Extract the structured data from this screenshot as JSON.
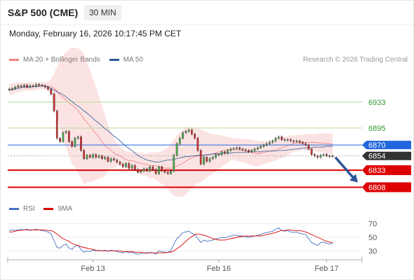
{
  "header": {
    "title": "S&P 500 (CME)",
    "interval": "30 MIN",
    "timestamp": "Monday, February 16, 2026 10:17:45 PM CET"
  },
  "legend": {
    "bollinger_label": "MA 20 + Bollinger Bands",
    "ma50_label": "MA 50",
    "copyright": "Research © 2026 Trading Central",
    "rsi_label": "RSI",
    "rsi_ma_label": "9MA"
  },
  "colors": {
    "bollinger": "#f08080",
    "ma50": "#2b5797",
    "resistance": "#339933",
    "pivot": "#2266dd",
    "support": "#dd0000",
    "last": "#333333",
    "rsi": "#4472c4",
    "rsi_ma": "#dd0000"
  },
  "chart_data": [
    {
      "type": "candlestick",
      "x_tick_labels": [
        "Feb 13",
        "Feb 16",
        "Feb 17"
      ],
      "ylim": [
        6790,
        6975
      ],
      "levels": [
        {
          "value": 6933,
          "label": "6933",
          "kind": "resistance"
        },
        {
          "value": 6895,
          "label": "6895",
          "kind": "resistance"
        },
        {
          "value": 6870,
          "label": "6870",
          "kind": "pivot"
        },
        {
          "value": 6854,
          "label": "6854",
          "kind": "last"
        },
        {
          "value": 6833,
          "label": "6833",
          "kind": "support"
        },
        {
          "value": 6808,
          "label": "6808",
          "kind": "support"
        }
      ],
      "close": [
        6952,
        6953,
        6955,
        6957,
        6956,
        6958,
        6955,
        6957,
        6956,
        6959,
        6958,
        6957,
        6955,
        6952,
        6945,
        6920,
        6880,
        6875,
        6888,
        6890,
        6875,
        6868,
        6880,
        6882,
        6862,
        6850,
        6855,
        6852,
        6856,
        6852,
        6854,
        6850,
        6852,
        6846,
        6850,
        6848,
        6845,
        6842,
        6838,
        6843,
        6836,
        6840,
        6834,
        6830,
        6832,
        6835,
        6832,
        6838,
        6834,
        6828,
        6838,
        6832,
        6830,
        6828,
        6832,
        6855,
        6872,
        6880,
        6888,
        6890,
        6892,
        6886,
        6880,
        6862,
        6842,
        6852,
        6846,
        6850,
        6852,
        6856,
        6856,
        6860,
        6858,
        6862,
        6864,
        6865,
        6866,
        6864,
        6863,
        6862,
        6860,
        6862,
        6864,
        6866,
        6868,
        6870,
        6872,
        6874,
        6876,
        6880,
        6882,
        6878,
        6877,
        6878,
        6876,
        6875,
        6876,
        6874,
        6872,
        6870,
        6864,
        6856,
        6854,
        6852,
        6855,
        6856,
        6854,
        6853,
        6854
      ],
      "sma20": [
        6952,
        6952,
        6954,
        6955,
        6955,
        6956,
        6956,
        6956,
        6956,
        6956,
        6957,
        6957,
        6957,
        6956,
        6956,
        6954,
        6949,
        6944,
        6940,
        6936,
        6932,
        6928,
        6925,
        6921,
        6915,
        6908,
        6903,
        6898,
        6892,
        6887,
        6881,
        6875,
        6869,
        6866,
        6862,
        6858,
        6856,
        6854,
        6851,
        6849,
        6847,
        6847,
        6846,
        6844,
        6843,
        6842,
        6841,
        6840,
        6840,
        6839,
        6838,
        6837,
        6836,
        6836,
        6836,
        6837,
        6839,
        6841,
        6843,
        6846,
        6849,
        6851,
        6853,
        6854,
        6854,
        6855,
        6856,
        6856,
        6857,
        6858,
        6860,
        6861,
        6862,
        6863,
        6864,
        6864,
        6863,
        6863,
        6862,
        6861,
        6860,
        6859,
        6858,
        6857,
        6858,
        6859,
        6860,
        6861,
        6862,
        6863,
        6865,
        6866,
        6867,
        6869,
        6871,
        6872,
        6873,
        6873,
        6874,
        6874,
        6874,
        6874,
        6874,
        6873,
        6873,
        6873,
        6872,
        6872,
        6871
      ],
      "upper_band": [
        6960,
        6960,
        6962,
        6962,
        6962,
        6962,
        6962,
        6962,
        6962,
        6962,
        6962,
        6962,
        6962,
        6963,
        6967,
        6975,
        6985,
        6994,
        7001,
        7006,
        7010,
        7013,
        7013,
        7012,
        7009,
        7004,
        6991,
        6980,
        6968,
        6955,
        6942,
        6928,
        6913,
        6900,
        6888,
        6880,
        6873,
        6868,
        6864,
        6861,
        6860,
        6860,
        6860,
        6859,
        6859,
        6858,
        6858,
        6859,
        6859,
        6859,
        6860,
        6861,
        6863,
        6866,
        6872,
        6878,
        6884,
        6888,
        6892,
        6895,
        6896,
        6896,
        6895,
        6894,
        6893,
        6891,
        6889,
        6887,
        6886,
        6885,
        6885,
        6884,
        6883,
        6882,
        6880,
        6880,
        6880,
        6880,
        6879,
        6879,
        6878,
        6878,
        6877,
        6876,
        6876,
        6876,
        6877,
        6877,
        6878,
        6879,
        6880,
        6881,
        6882,
        6883,
        6884,
        6884,
        6885,
        6885,
        6885,
        6886,
        6886,
        6886,
        6886,
        6887,
        6887,
        6887,
        6887,
        6887,
        6887
      ],
      "lower_band": [
        6944,
        6944,
        6946,
        6948,
        6948,
        6950,
        6950,
        6950,
        6950,
        6950,
        6952,
        6952,
        6952,
        6949,
        6945,
        6933,
        6913,
        6894,
        6879,
        6866,
        6854,
        6843,
        6837,
        6830,
        6821,
        6812,
        6815,
        6816,
        6816,
        6819,
        6820,
        6822,
        6825,
        6832,
        6836,
        6836,
        6839,
        6840,
        6838,
        6837,
        6834,
        6834,
        6832,
        6829,
        6827,
        6826,
        6824,
        6821,
        6821,
        6819,
        6816,
        6813,
        6809,
        6806,
        6800,
        6796,
        6794,
        6794,
        6794,
        6797,
        6802,
        6806,
        6811,
        6814,
        6815,
        6819,
        6823,
        6825,
        6828,
        6831,
        6835,
        6838,
        6841,
        6844,
        6848,
        6848,
        6846,
        6846,
        6845,
        6843,
        6842,
        6840,
        6839,
        6838,
        6840,
        6842,
        6843,
        6845,
        6846,
        6847,
        6850,
        6851,
        6852,
        6855,
        6858,
        6860,
        6861,
        6861,
        6863,
        6862,
        6862,
        6862,
        6862,
        6859,
        6859,
        6859,
        6857,
        6857,
        6855
      ],
      "ma50": [
        6950,
        6951,
        6952,
        6953,
        6954,
        6955,
        6955,
        6955,
        6956,
        6956,
        6956,
        6957,
        6957,
        6955,
        6953,
        6951,
        6948,
        6946,
        6944,
        6941,
        6937,
        6934,
        6930,
        6927,
        6924,
        6920,
        6917,
        6913,
        6909,
        6905,
        6902,
        6898,
        6894,
        6891,
        6887,
        6883,
        6880,
        6876,
        6872,
        6868,
        6865,
        6862,
        6858,
        6855,
        6852,
        6850,
        6848,
        6847,
        6846,
        6845,
        6845,
        6846,
        6847,
        6848,
        6848,
        6849,
        6850,
        6851,
        6852,
        6853,
        6853,
        6854,
        6854,
        6855,
        6855,
        6855,
        6856,
        6856,
        6857,
        6857,
        6857,
        6858,
        6858,
        6858,
        6858,
        6859,
        6859,
        6859,
        6859,
        6859,
        6860,
        6860,
        6860,
        6860,
        6860,
        6861,
        6861,
        6861,
        6861,
        6861,
        6862,
        6862,
        6862,
        6863,
        6863,
        6864,
        6864,
        6865,
        6865,
        6866,
        6866,
        6866,
        6867,
        6867,
        6867,
        6867,
        6868,
        6868,
        6868
      ],
      "forecast": {
        "from": 6854,
        "to": 6815
      }
    },
    {
      "type": "line",
      "name": "RSI",
      "ylim": [
        20,
        80
      ],
      "y_tick_labels": [
        "70",
        "50",
        "30"
      ],
      "y_ticks": [
        70,
        50,
        30
      ],
      "series": [
        {
          "name": "RSI",
          "values": [
            60,
            61,
            60,
            61,
            62,
            61,
            62,
            60,
            61,
            62,
            61,
            60,
            59,
            58,
            55,
            45,
            35,
            34,
            38,
            40,
            34,
            32,
            37,
            38,
            32,
            28,
            30,
            29,
            31,
            30,
            31,
            30,
            31,
            29,
            31,
            30,
            29,
            28,
            27,
            29,
            27,
            28,
            26,
            25,
            26,
            27,
            26,
            28,
            27,
            25,
            30,
            29,
            28,
            28,
            30,
            40,
            48,
            52,
            57,
            58,
            59,
            56,
            54,
            48,
            42,
            46,
            44,
            45,
            46,
            48,
            48,
            50,
            49,
            51,
            52,
            53,
            53,
            52,
            52,
            51,
            50,
            51,
            52,
            53,
            54,
            56,
            57,
            58,
            59,
            62,
            64,
            60,
            59,
            60,
            58,
            57,
            58,
            56,
            55,
            54,
            48,
            42,
            40,
            38,
            42,
            43,
            41,
            40,
            41
          ]
        },
        {
          "name": "9MA",
          "values": [
            58,
            58,
            59,
            60,
            60,
            61,
            61,
            61,
            61,
            61,
            61,
            61,
            61,
            60,
            60,
            58,
            55,
            51,
            48,
            46,
            44,
            41,
            39,
            38,
            36,
            35,
            34,
            33,
            32,
            31,
            30,
            30,
            30,
            30,
            30,
            30,
            30,
            30,
            29,
            29,
            29,
            29,
            28,
            28,
            28,
            27,
            27,
            27,
            27,
            27,
            27,
            27,
            27,
            28,
            28,
            30,
            33,
            36,
            40,
            44,
            48,
            51,
            54,
            55,
            54,
            53,
            52,
            50,
            48,
            47,
            46,
            46,
            46,
            47,
            48,
            49,
            50,
            51,
            51,
            52,
            52,
            52,
            52,
            52,
            52,
            53,
            54,
            55,
            56,
            57,
            59,
            60,
            60,
            61,
            61,
            60,
            60,
            60,
            59,
            58,
            56,
            54,
            52,
            50,
            48,
            46,
            44,
            43,
            42
          ]
        }
      ]
    }
  ]
}
